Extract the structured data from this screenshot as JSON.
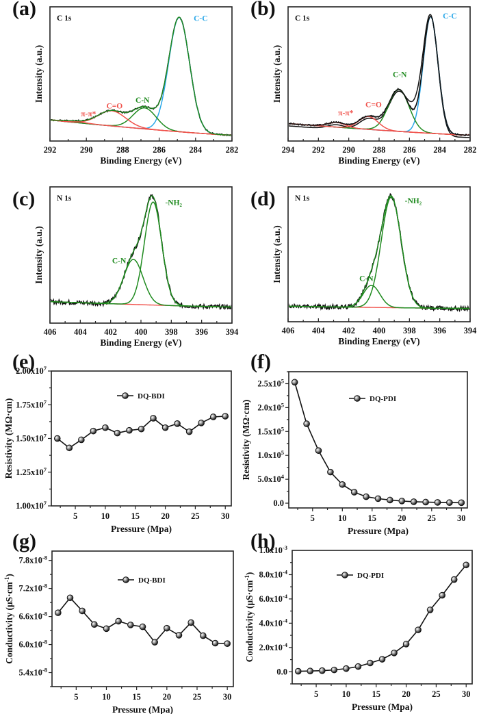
{
  "chart_data": [
    {
      "id": "a",
      "panel_label": "(a)",
      "type": "line",
      "subtype": "xps",
      "title": "C 1s",
      "xlabel": "Binding Energy (eV)",
      "ylabel": "Intensity (a.u.)",
      "xlim": [
        292,
        282
      ],
      "xticks": [
        292,
        290,
        288,
        286,
        284,
        282
      ],
      "background": {
        "start": 0.13,
        "end": 0.0
      },
      "peaks": [
        {
          "name": "C-C",
          "center": 284.9,
          "height": 0.98,
          "fwhm": 1.35,
          "color": "#2aa7e8"
        },
        {
          "name": "C-N",
          "center": 286.8,
          "height": 0.18,
          "fwhm": 1.5,
          "color": "#1e8a1e"
        },
        {
          "name": "C=O",
          "center": 288.6,
          "height": 0.13,
          "fwhm": 1.8,
          "color": "#f0504a"
        },
        {
          "name": "π-π*",
          "center": 290.7,
          "height": 0.01,
          "fwhm": 1.5,
          "color": "#f0504a"
        }
      ],
      "annotations": [
        {
          "text": "C-C",
          "x": 284.1,
          "y": 0.98,
          "color": "#2aa7e8"
        },
        {
          "text": "C-N",
          "x": 287.3,
          "y": 0.28,
          "color": "#1e8a1e"
        },
        {
          "text": "C=O",
          "x": 288.9,
          "y": 0.23,
          "color": "#f0504a"
        },
        {
          "text": "π-π*",
          "x": 290.3,
          "y": 0.16,
          "color": "#f0504a"
        }
      ],
      "envelope_color": "#1e8a1e",
      "raw_color": "#111111",
      "ylim": [
        -0.05,
        1.1
      ]
    },
    {
      "id": "b",
      "panel_label": "(b)",
      "type": "line",
      "subtype": "xps",
      "title": "C 1s",
      "xlabel": "Binding Energy (eV)",
      "ylabel": "Intensity (a.u.)",
      "xlim": [
        294,
        282
      ],
      "xticks": [
        294,
        292,
        290,
        288,
        286,
        284,
        282
      ],
      "background": {
        "start": 0.1,
        "end": 0.0
      },
      "peaks": [
        {
          "name": "C-C",
          "center": 284.6,
          "height": 1.0,
          "fwhm": 1.15,
          "color": "#2aa7e8"
        },
        {
          "name": "C-N",
          "center": 286.7,
          "height": 0.36,
          "fwhm": 1.6,
          "color": "#1e8a1e"
        },
        {
          "name": "C=O",
          "center": 288.7,
          "height": 0.11,
          "fwhm": 1.5,
          "color": "#f0504a"
        },
        {
          "name": "π-π*",
          "center": 290.8,
          "height": 0.04,
          "fwhm": 1.4,
          "color": "#f0504a"
        }
      ],
      "annotations": [
        {
          "text": "C-C",
          "x": 283.8,
          "y": 1.0,
          "color": "#2aa7e8"
        },
        {
          "text": "C-N",
          "x": 287.1,
          "y": 0.5,
          "color": "#1e8a1e"
        },
        {
          "text": "C=O",
          "x": 288.9,
          "y": 0.24,
          "color": "#f0504a"
        },
        {
          "text": "π-π*",
          "x": 290.7,
          "y": 0.17,
          "color": "#f0504a"
        }
      ],
      "envelope_color": "#111111",
      "raw_color": "#111111",
      "ylim": [
        -0.05,
        1.1
      ]
    },
    {
      "id": "c",
      "panel_label": "(c)",
      "type": "line",
      "subtype": "xps",
      "title": "N 1s",
      "xlabel": "Binding Energy (eV)",
      "ylabel": "Intensity (a.u.)",
      "xlim": [
        406,
        394
      ],
      "xticks": [
        406,
        404,
        402,
        400,
        398,
        396,
        394
      ],
      "background": {
        "start": 0.05,
        "end": 0.0
      },
      "peaks": [
        {
          "name": "-NH2",
          "center": 399.2,
          "height": 0.96,
          "fwhm": 1.35,
          "color": "#1e8a1e"
        },
        {
          "name": "C-N",
          "center": 400.5,
          "height": 0.42,
          "fwhm": 1.5,
          "color": "#1e8a1e"
        }
      ],
      "annotations": [
        {
          "text": "-NH₂",
          "x": 398.4,
          "y": 0.95,
          "color": "#1e8a1e"
        },
        {
          "text": "C-N",
          "x": 401.9,
          "y": 0.41,
          "color": "#1e8a1e"
        }
      ],
      "envelope_color": "#1e8a1e",
      "raw_color": "#111111",
      "ylim": [
        -0.15,
        1.12
      ]
    },
    {
      "id": "d",
      "panel_label": "(d)",
      "type": "line",
      "subtype": "xps",
      "title": "N 1s",
      "xlabel": "Binding Energy (eV)",
      "ylabel": "Intensity (a.u.)",
      "xlim": [
        406,
        394
      ],
      "xticks": [
        406,
        404,
        402,
        400,
        398,
        396,
        394
      ],
      "background": {
        "start": 0.02,
        "end": 0.0
      },
      "peaks": [
        {
          "name": "-NH2",
          "center": 399.2,
          "height": 1.0,
          "fwhm": 1.55,
          "color": "#1e8a1e"
        },
        {
          "name": "C-N",
          "center": 400.5,
          "height": 0.2,
          "fwhm": 1.3,
          "color": "#1e8a1e"
        }
      ],
      "annotations": [
        {
          "text": "-NH₂",
          "x": 398.3,
          "y": 0.95,
          "color": "#1e8a1e"
        },
        {
          "text": "C-N",
          "x": 401.3,
          "y": 0.25,
          "color": "#1e8a1e"
        }
      ],
      "envelope_color": "#1e8a1e",
      "raw_color": "#111111",
      "ylim": [
        -0.12,
        1.1
      ]
    },
    {
      "id": "e",
      "panel_label": "(e)",
      "type": "line",
      "subtype": "marker-line",
      "xlabel": "Pressure (Mpa)",
      "ylabel": "Resistivity (MΩ·cm)",
      "legend": "DQ-BDI",
      "legend_position": "top-right",
      "x": [
        2,
        4,
        6,
        8,
        10,
        12,
        14,
        16,
        18,
        20,
        22,
        24,
        26,
        28,
        30
      ],
      "values": [
        15000000.0,
        14300000.0,
        14900000.0,
        15550000.0,
        15800000.0,
        15400000.0,
        15600000.0,
        15700000.0,
        16500000.0,
        15800000.0,
        16100000.0,
        15500000.0,
        16150000.0,
        16600000.0,
        16650000.0
      ],
      "xlim": [
        1,
        31
      ],
      "ylim": [
        10000000.0,
        20000000.0
      ],
      "xticks": [
        5,
        10,
        15,
        20,
        25,
        30
      ],
      "yticks": [
        10000000.0,
        12500000.0,
        15000000.0,
        17500000.0,
        20000000.0
      ],
      "ytick_labels": [
        "1.00x10^7",
        "1.25x10^7",
        "1.50x10^7",
        "1.75x10^7",
        "2.00x10^7"
      ]
    },
    {
      "id": "f",
      "panel_label": "(f)",
      "type": "line",
      "subtype": "marker-line",
      "xlabel": "Pressure (Mpa)",
      "ylabel": "Resistivity (MΩ·cm)",
      "legend": "DQ-PDI",
      "legend_position": "top-right",
      "x": [
        2,
        4,
        6,
        8,
        10,
        12,
        14,
        16,
        18,
        20,
        22,
        24,
        26,
        28,
        30
      ],
      "values": [
        253000.0,
        166000.0,
        110000.0,
        65000.0,
        39000.0,
        23000.0,
        13500.0,
        9500.0,
        6500.0,
        4500.0,
        3000.0,
        2200.0,
        1600.0,
        1200.0,
        1000.0
      ],
      "xlim": [
        1,
        31
      ],
      "ylim": [
        -10000.0,
        275000.0
      ],
      "xticks": [
        5,
        10,
        15,
        20,
        25,
        30
      ],
      "yticks": [
        0,
        50000.0,
        100000.0,
        150000.0,
        200000.0,
        250000.0
      ],
      "ytick_labels": [
        "0.0",
        "5.0x10^4",
        "1.0x10^5",
        "1.5x10^5",
        "2.0x10^5",
        "2.5x10^5"
      ]
    },
    {
      "id": "g",
      "panel_label": "(g)",
      "type": "line",
      "subtype": "marker-line",
      "xlabel": "Pressure (Mpa)",
      "ylabel": "Conductivity (μS·cm^-1)",
      "legend": "DQ-BDI",
      "legend_position": "top-right",
      "x": [
        2,
        4,
        6,
        8,
        10,
        12,
        14,
        16,
        18,
        20,
        22,
        24,
        26,
        28,
        30
      ],
      "values": [
        6.68e-08,
        7e-08,
        6.72e-08,
        6.43e-08,
        6.34e-08,
        6.5e-08,
        6.42e-08,
        6.38e-08,
        6.05e-08,
        6.35e-08,
        6.2e-08,
        6.47e-08,
        6.19e-08,
        6.03e-08,
        6.02e-08
      ],
      "xlim": [
        1,
        31
      ],
      "ylim": [
        5.1e-08,
        8e-08
      ],
      "xticks": [
        5,
        10,
        15,
        20,
        25,
        30
      ],
      "yticks": [
        5.4e-08,
        6e-08,
        6.6e-08,
        7.2e-08,
        7.8e-08
      ],
      "ytick_labels": [
        "5.4x10^-8",
        "6.0x10^-8",
        "6.6x10^-8",
        "7.2x10^-8",
        "7.8x10^-8"
      ]
    },
    {
      "id": "h",
      "panel_label": "(h)",
      "type": "line",
      "subtype": "marker-line",
      "xlabel": "Pressure (Mpa)",
      "ylabel": "Conductivity (μS·cm^-1)",
      "legend": "DQ-PDI",
      "legend_position": "top-left",
      "x": [
        2,
        4,
        6,
        8,
        10,
        12,
        14,
        16,
        18,
        20,
        22,
        24,
        26,
        28,
        30
      ],
      "values": [
        4e-06,
        6e-06,
        9e-06,
        1.5e-05,
        2.6e-05,
        4.3e-05,
        7.2e-05,
        0.000103,
        0.000155,
        0.000228,
        0.000345,
        0.00051,
        0.00063,
        0.00076,
        0.00088
      ],
      "xlim": [
        1,
        31
      ],
      "ylim": [
        -0.0001,
        0.001
      ],
      "xticks": [
        5,
        10,
        15,
        20,
        25,
        30
      ],
      "yticks": [
        0,
        0.0002,
        0.0004,
        0.0006,
        0.0008,
        0.001
      ],
      "ytick_labels": [
        "0.0",
        "2.0x10^-4",
        "4.0x10^-4",
        "6.0x10^-4",
        "8.0x10^-4",
        "1.0x10^-3"
      ]
    }
  ]
}
